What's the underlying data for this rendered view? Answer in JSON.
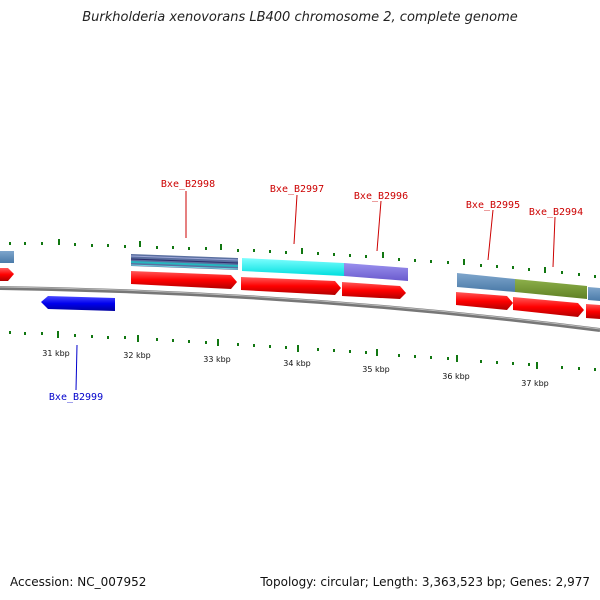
{
  "title": "Burkholderia xenovorans LB400 chromosome 2, complete genome",
  "footer": {
    "accession": "Accession: NC_007952",
    "summary": "Topology: circular; Length: 3,363,523 bp; Genes: 2,977"
  },
  "colors": {
    "forward_gene": "#ff0000",
    "reverse_gene": "#0000ee",
    "forward_label": "#cc0000",
    "reverse_label": "#0000cc",
    "tick": "#117711",
    "backbone": "#888888"
  },
  "scale": {
    "ticks": [
      "31 kbp",
      "32 kbp",
      "33 kbp",
      "34 kbp",
      "35 kbp",
      "36 kbp",
      "37 kbp"
    ]
  },
  "genes": {
    "forward": [
      {
        "id": "Bxe_B2998",
        "label": "Bxe_B2998"
      },
      {
        "id": "Bxe_B2997",
        "label": "Bxe_B2997"
      },
      {
        "id": "Bxe_B2996",
        "label": "Bxe_B2996"
      },
      {
        "id": "Bxe_B2995",
        "label": "Bxe_B2995"
      },
      {
        "id": "Bxe_B2994",
        "label": "Bxe_B2994"
      }
    ],
    "reverse": [
      {
        "id": "Bxe_B2999",
        "label": "Bxe_B2999"
      }
    ]
  }
}
